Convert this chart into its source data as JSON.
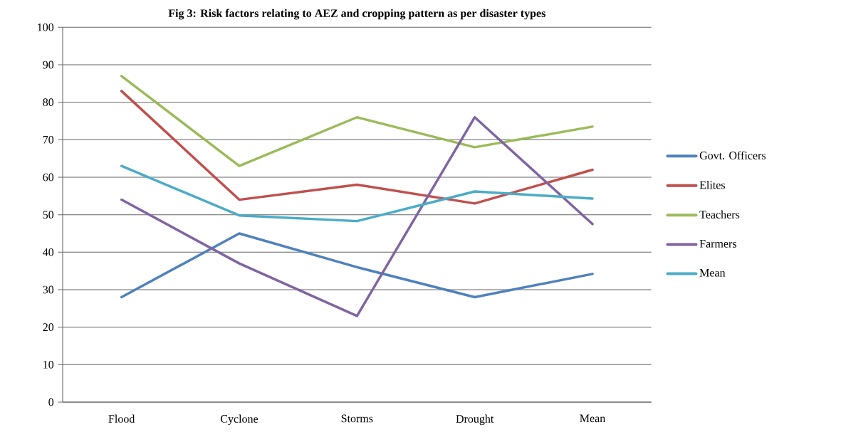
{
  "chart_data": {
    "type": "line",
    "title": "Fig 3: Risk factors relating to AEZ and cropping pattern as per disaster types",
    "categories": [
      "Flood",
      "Cyclone",
      "Storms",
      "Drought",
      "Mean"
    ],
    "series": [
      {
        "name": "Govt. Officers",
        "color": "#4f81bd",
        "values": [
          28,
          45,
          36,
          28,
          34.2
        ]
      },
      {
        "name": "Elites",
        "color": "#c0504d",
        "values": [
          83,
          54,
          58,
          53,
          62
        ]
      },
      {
        "name": "Teachers",
        "color": "#9bbb59",
        "values": [
          87,
          63,
          76,
          68,
          73.5
        ]
      },
      {
        "name": "Farmers",
        "color": "#8064a2",
        "values": [
          54,
          37,
          23,
          76,
          47.5
        ]
      },
      {
        "name": "Mean",
        "color": "#4bacc6",
        "values": [
          63,
          49.8,
          48.3,
          56.2,
          54.3
        ]
      }
    ],
    "ylim": [
      0,
      100
    ],
    "yticks": [
      0,
      10,
      20,
      30,
      40,
      50,
      60,
      70,
      80,
      90,
      100
    ],
    "grid": "y",
    "legend": "right",
    "marker": "none",
    "line_style": "solid"
  }
}
